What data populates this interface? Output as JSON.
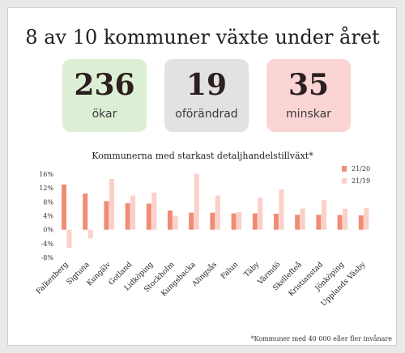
{
  "headline": "8 av 10 kommuner växte under året",
  "stats": [
    {
      "value": "236",
      "label": "ökar",
      "color": "#dcefd4"
    },
    {
      "value": "19",
      "label": "oförändrad",
      "color": "#e2e2e2"
    },
    {
      "value": "35",
      "label": "minskar",
      "color": "#fbd4d4"
    }
  ],
  "footnote": "*Kommuner med 40 000 eller fler invånare",
  "chart_data": {
    "type": "bar",
    "title": "Kommunerna med starkast detaljhandelstillväxt*",
    "categories": [
      "Falkenberg",
      "Sigtuna",
      "Kungälv",
      "Gotland",
      "Lidköping",
      "Stockholm",
      "Kungsbacka",
      "Alingsås",
      "Falun",
      "Täby",
      "Värmdö",
      "Skellefteå",
      "Kristianstad",
      "Jönköping",
      "Upplands Väsby"
    ],
    "series": [
      {
        "name": "21/20",
        "color": "#f08c74",
        "values": [
          13.0,
          10.4,
          8.2,
          7.6,
          7.5,
          5.5,
          4.9,
          4.9,
          4.7,
          4.7,
          4.6,
          4.3,
          4.3,
          4.2,
          4.1
        ]
      },
      {
        "name": "21/19",
        "color": "#fbd0c8",
        "values": [
          -5.3,
          -2.5,
          14.6,
          9.8,
          10.7,
          4.0,
          16.1,
          9.8,
          5.1,
          9.2,
          11.6,
          6.1,
          8.6,
          6.0,
          6.2
        ]
      }
    ],
    "yticks": [
      "16%",
      "12%",
      "8%",
      "4%",
      "0%",
      "-4%",
      "-8%"
    ],
    "ylim": [
      -8,
      16
    ],
    "legend_position": "top-right"
  }
}
